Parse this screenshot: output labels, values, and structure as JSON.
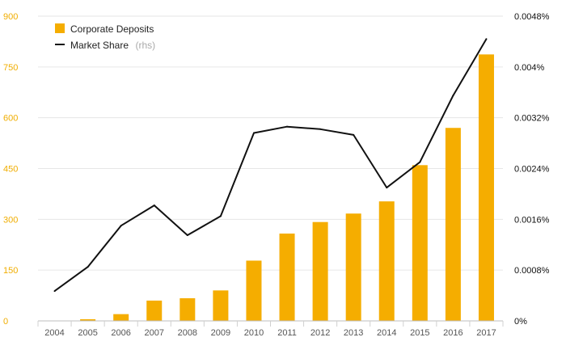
{
  "chart_data": {
    "type": "bar",
    "categories": [
      "2004",
      "2005",
      "2006",
      "2007",
      "2008",
      "2009",
      "2010",
      "2011",
      "2012",
      "2013",
      "2014",
      "2015",
      "2016",
      "2017"
    ],
    "series": [
      {
        "name": "Corporate Deposits",
        "type": "bar",
        "axis": "left",
        "color": "#f5ad00",
        "values": [
          0,
          5,
          20,
          60,
          67,
          90,
          178,
          258,
          292,
          317,
          353,
          460,
          570,
          787
        ]
      },
      {
        "name": "Market Share",
        "type": "line",
        "axis": "right",
        "color": "#111111",
        "values": [
          0.00047,
          0.00085,
          0.0015,
          0.00182,
          0.00135,
          0.00165,
          0.00296,
          0.00306,
          0.00302,
          0.00293,
          0.0021,
          0.0025,
          0.00355,
          0.00444
        ]
      }
    ],
    "left_axis": {
      "range": [
        0,
        900
      ],
      "ticks": [
        0,
        150,
        300,
        450,
        600,
        750,
        900
      ],
      "tick_labels": [
        "0",
        "150",
        "300",
        "450",
        "600",
        "750",
        "900"
      ],
      "color": "#f0ad00"
    },
    "right_axis": {
      "range": [
        0,
        0.0048
      ],
      "ticks": [
        0,
        0.0008,
        0.0016,
        0.0024,
        0.0032,
        0.004,
        0.0048
      ],
      "tick_labels": [
        "0%",
        "0.0008%",
        "0.0016%",
        "0.0024%",
        "0.0032%",
        "0.004%",
        "0.0048%"
      ],
      "color": "#111111"
    },
    "grid": true,
    "legend": {
      "placement": "top-left",
      "items": [
        {
          "label": "Corporate Deposits",
          "suffix": ""
        },
        {
          "label": "Market Share",
          "suffix": "(rhs)"
        }
      ]
    }
  }
}
